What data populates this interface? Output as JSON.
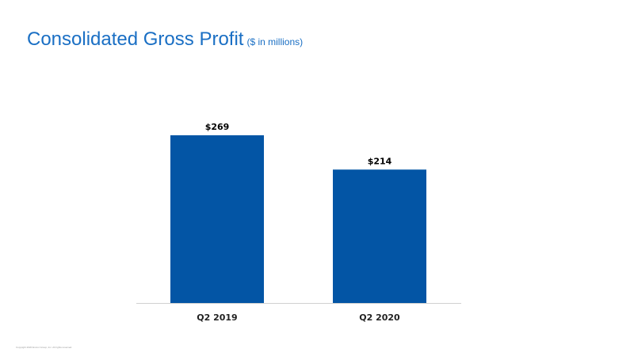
{
  "title": {
    "main": "Consolidated Gross Profit",
    "sub": "($ in millions)"
  },
  "footer": {
    "copyright": "Copyright 2020 Emcor Group, Inc. All rights reserved."
  },
  "colors": {
    "title": "#1a6fc4",
    "bar": "#0355a5",
    "axis": "#d0d0d0",
    "label": "#000000"
  },
  "chart_data": {
    "type": "bar",
    "categories": [
      "Q2 2019",
      "Q2 2020"
    ],
    "values": [
      269,
      214
    ],
    "value_labels": [
      "$269",
      "$214"
    ],
    "title": "Consolidated Gross Profit",
    "subtitle": "($ in millions)",
    "xlabel": "",
    "ylabel": "",
    "ylim": [
      0,
      269
    ],
    "grid": false,
    "legend": "none"
  }
}
